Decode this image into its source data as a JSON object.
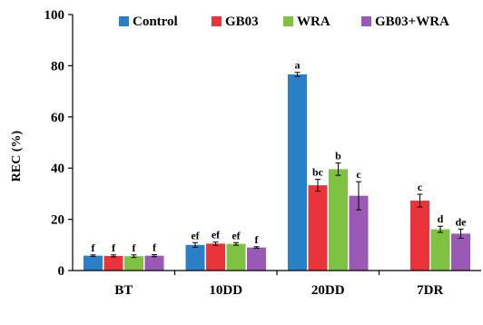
{
  "chart_data": {
    "type": "bar",
    "ylabel": "REC (%)",
    "ylim": [
      0,
      100
    ],
    "yticks": [
      0,
      20,
      40,
      60,
      80,
      100
    ],
    "categories": [
      "BT",
      "10DD",
      "20DD",
      "7DR"
    ],
    "legend_position": "top",
    "grid": false,
    "series": [
      {
        "name": "Control",
        "color": "#2a7fc9",
        "values": [
          5.8,
          10.0,
          76.6,
          null
        ],
        "errors": [
          0.3,
          0.9,
          0.8,
          null
        ],
        "labels": [
          "f",
          "ef",
          "a",
          ""
        ]
      },
      {
        "name": "GB03",
        "color": "#e8343a",
        "values": [
          5.7,
          10.5,
          33.3,
          27.3
        ],
        "errors": [
          0.4,
          0.6,
          2.3,
          2.5
        ],
        "labels": [
          "f",
          "ef",
          "bc",
          "c"
        ]
      },
      {
        "name": "WRA",
        "color": "#7fc241",
        "values": [
          5.6,
          10.4,
          39.6,
          16.1
        ],
        "errors": [
          0.5,
          0.5,
          2.4,
          1.2
        ],
        "labels": [
          "f",
          "ef",
          "b",
          "d"
        ]
      },
      {
        "name": "GB03+WRA",
        "color": "#9b59b6",
        "values": [
          5.8,
          9.0,
          29.2,
          14.4
        ],
        "errors": [
          0.4,
          0.3,
          5.5,
          1.8
        ],
        "labels": [
          "f",
          "f",
          "c",
          "de"
        ]
      }
    ]
  }
}
